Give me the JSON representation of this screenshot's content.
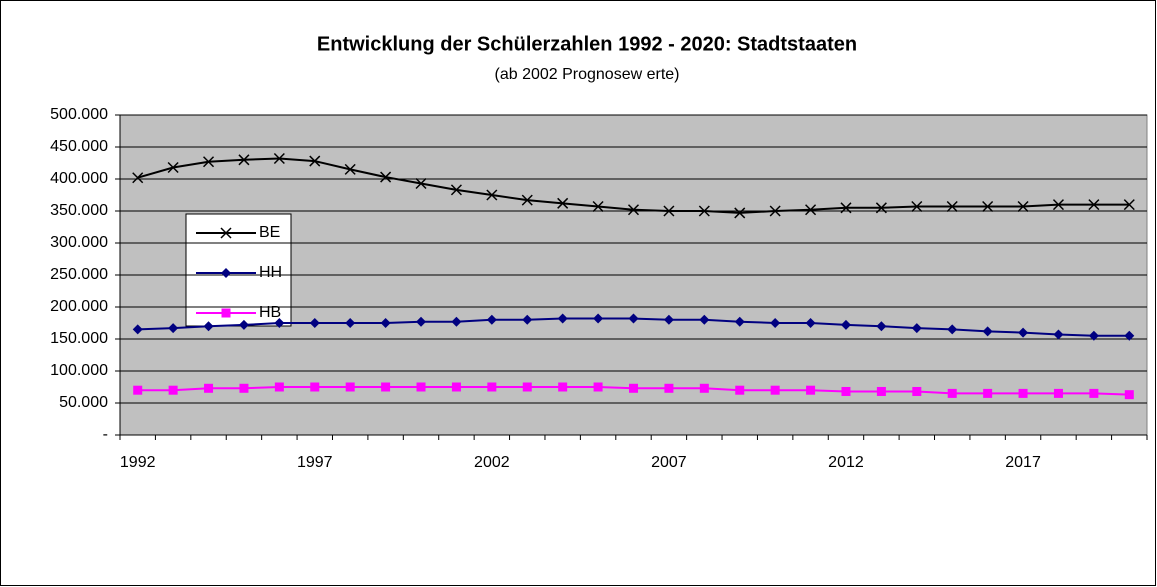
{
  "chart_data": {
    "type": "line",
    "title": "Entwicklung der Schülerzahlen 1992 - 2020: Stadtstaaten",
    "subtitle": "(ab 2002 Prognosew erte)",
    "categories": [
      "1992",
      null,
      null,
      null,
      null,
      "1997",
      null,
      null,
      null,
      null,
      "2002",
      null,
      null,
      null,
      null,
      "2007",
      null,
      null,
      null,
      null,
      "2012",
      null,
      null,
      null,
      null,
      "2017",
      null,
      null,
      null
    ],
    "series": [
      {
        "name": "BE",
        "color": "#000000",
        "marker": "x",
        "values": [
          402000,
          418000,
          427000,
          430000,
          432000,
          428000,
          415000,
          403000,
          393000,
          383000,
          375000,
          367000,
          362000,
          357000,
          352000,
          350000,
          350000,
          347000,
          350000,
          352000,
          355000,
          355000,
          357000,
          357000,
          357000,
          357000,
          360000,
          360000,
          360000
        ]
      },
      {
        "name": "HH",
        "color": "#000080",
        "marker": "diamond",
        "values": [
          165000,
          167000,
          170000,
          172000,
          175000,
          175000,
          175000,
          175000,
          177000,
          177000,
          180000,
          180000,
          182000,
          182000,
          182000,
          180000,
          180000,
          177000,
          175000,
          175000,
          172000,
          170000,
          167000,
          165000,
          162000,
          160000,
          157000,
          155000,
          155000
        ]
      },
      {
        "name": "HB",
        "color": "#ff00ff",
        "marker": "square",
        "values": [
          70000,
          70000,
          73000,
          73000,
          75000,
          75000,
          75000,
          75000,
          75000,
          75000,
          75000,
          75000,
          75000,
          75000,
          73000,
          73000,
          73000,
          70000,
          70000,
          70000,
          68000,
          68000,
          68000,
          65000,
          65000,
          65000,
          65000,
          65000,
          63000
        ]
      }
    ],
    "ylim": [
      0,
      500000
    ],
    "yticks": [
      {
        "value": 0,
        "label": "-"
      },
      {
        "value": 50000,
        "label": "50.000"
      },
      {
        "value": 100000,
        "label": "100.000"
      },
      {
        "value": 150000,
        "label": "150.000"
      },
      {
        "value": 200000,
        "label": "200.000"
      },
      {
        "value": 250000,
        "label": "250.000"
      },
      {
        "value": 300000,
        "label": "300.000"
      },
      {
        "value": 350000,
        "label": "350.000"
      },
      {
        "value": 400000,
        "label": "400.000"
      },
      {
        "value": 450000,
        "label": "450.000"
      },
      {
        "value": 500000,
        "label": "500.000"
      }
    ],
    "grid": true
  }
}
